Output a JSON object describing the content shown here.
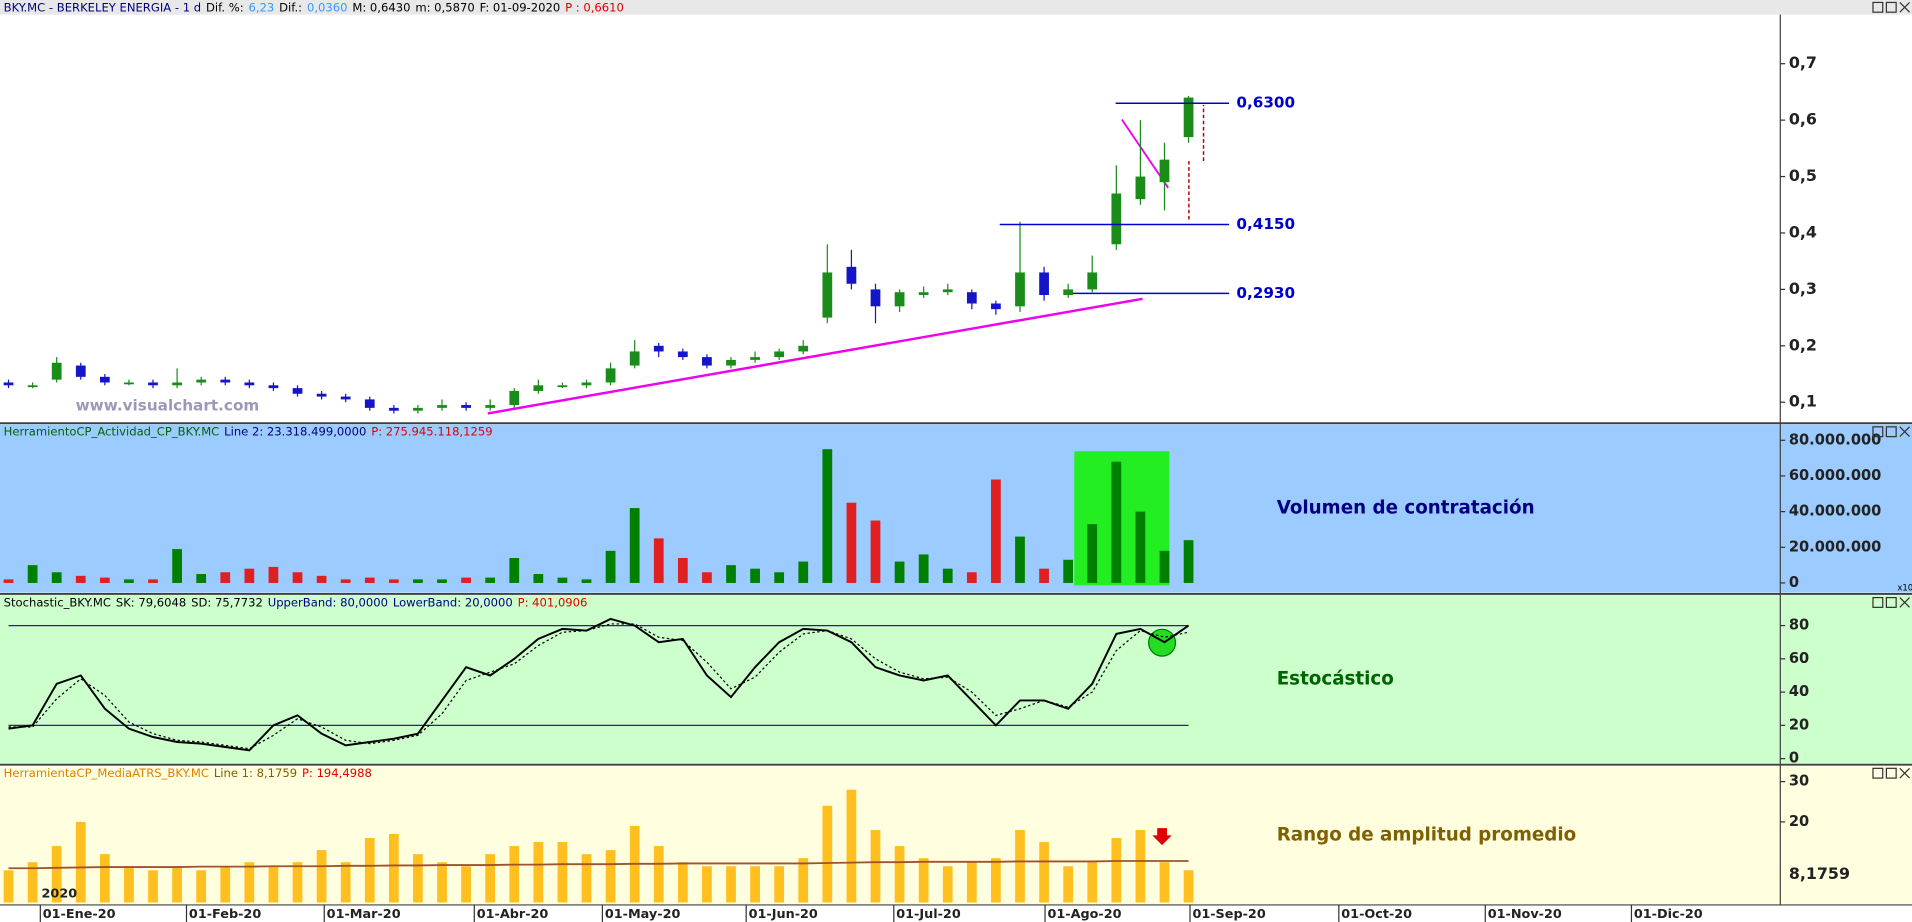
{
  "chart_data": [
    {
      "type": "candlestick",
      "header": [
        {
          "text": "BKY.MC - BERKELEY ENERGIA -  1 d",
          "color": "#000080"
        },
        {
          "text": "Dif. %:",
          "color": "#000000"
        },
        {
          "text": "6,23",
          "color": "#3399ff"
        },
        {
          "text": "Dif.:",
          "color": "#000000"
        },
        {
          "text": "0,0360",
          "color": "#3399ff"
        },
        {
          "text": "M: 0,6430",
          "color": "#000000"
        },
        {
          "text": "m: 0,5870",
          "color": "#000000"
        },
        {
          "text": "F: 01-09-2020",
          "color": "#000000"
        },
        {
          "text": "P : 0,6610",
          "color": "#e00000"
        }
      ],
      "watermark": "www.visualchart.com",
      "open": [
        0.135,
        0.13,
        0.14,
        0.165,
        0.145,
        0.135,
        0.135,
        0.13,
        0.135,
        0.14,
        0.135,
        0.13,
        0.125,
        0.115,
        0.11,
        0.105,
        0.09,
        0.085,
        0.09,
        0.095,
        0.09,
        0.095,
        0.12,
        0.13,
        0.13,
        0.135,
        0.165,
        0.2,
        0.19,
        0.18,
        0.165,
        0.175,
        0.18,
        0.19,
        0.25,
        0.34,
        0.3,
        0.27,
        0.29,
        0.295,
        0.295,
        0.275,
        0.27,
        0.33,
        0.29,
        0.3,
        0.38,
        0.46,
        0.49,
        0.57
      ],
      "high": [
        0.14,
        0.135,
        0.18,
        0.17,
        0.15,
        0.14,
        0.14,
        0.16,
        0.145,
        0.145,
        0.14,
        0.135,
        0.13,
        0.12,
        0.115,
        0.11,
        0.095,
        0.095,
        0.105,
        0.1,
        0.105,
        0.125,
        0.14,
        0.135,
        0.14,
        0.17,
        0.21,
        0.205,
        0.195,
        0.185,
        0.18,
        0.19,
        0.195,
        0.21,
        0.38,
        0.37,
        0.31,
        0.3,
        0.305,
        0.31,
        0.3,
        0.28,
        0.42,
        0.34,
        0.31,
        0.36,
        0.52,
        0.6,
        0.56,
        0.643
      ],
      "low": [
        0.125,
        0.125,
        0.135,
        0.14,
        0.13,
        0.13,
        0.125,
        0.125,
        0.13,
        0.13,
        0.125,
        0.12,
        0.11,
        0.105,
        0.1,
        0.085,
        0.08,
        0.08,
        0.085,
        0.085,
        0.085,
        0.09,
        0.115,
        0.125,
        0.125,
        0.13,
        0.16,
        0.18,
        0.175,
        0.16,
        0.16,
        0.17,
        0.175,
        0.185,
        0.24,
        0.3,
        0.24,
        0.26,
        0.285,
        0.29,
        0.265,
        0.255,
        0.26,
        0.28,
        0.285,
        0.295,
        0.37,
        0.45,
        0.44,
        0.56
      ],
      "close": [
        0.13,
        0.13,
        0.17,
        0.145,
        0.135,
        0.135,
        0.13,
        0.135,
        0.14,
        0.135,
        0.13,
        0.125,
        0.115,
        0.11,
        0.105,
        0.09,
        0.085,
        0.09,
        0.095,
        0.09,
        0.095,
        0.12,
        0.13,
        0.13,
        0.135,
        0.16,
        0.19,
        0.19,
        0.18,
        0.165,
        0.175,
        0.18,
        0.19,
        0.2,
        0.33,
        0.31,
        0.27,
        0.295,
        0.295,
        0.3,
        0.275,
        0.265,
        0.33,
        0.29,
        0.3,
        0.33,
        0.47,
        0.5,
        0.53,
        0.64
      ],
      "up_color": "#1a8c1a",
      "down_color": "#1414c8",
      "xlim": [
        -0.354,
        73.47
      ],
      "ylim": [
        0.065,
        0.787
      ],
      "yticks": [
        {
          "value": 0.1,
          "label": "0,1"
        },
        {
          "value": 0.2,
          "label": "0,2"
        },
        {
          "value": 0.3,
          "label": "0,3"
        },
        {
          "value": 0.4,
          "label": "0,4"
        },
        {
          "value": 0.5,
          "label": "0,5"
        },
        {
          "value": 0.6,
          "label": "0,6"
        },
        {
          "value": 0.7,
          "label": "0,7"
        }
      ],
      "levels": [
        {
          "value": 0.63,
          "label": "0,6300",
          "x": [
            45.97,
            50.68
          ]
        },
        {
          "value": 0.415,
          "label": "0,4150",
          "x": [
            41.16,
            50.68
          ]
        },
        {
          "value": 0.293,
          "label": "0,2930",
          "x": [
            44.2,
            50.68
          ]
        }
      ],
      "level_color": "#0000cc"
    },
    {
      "type": "bar",
      "header": [
        {
          "text": "HerramientoCP_Actividad_CP_BKY.MC",
          "color": "#006400"
        },
        {
          "text": "Line 2: 23.318.499,0000",
          "color": "#000080"
        },
        {
          "text": "P: 275.945.118,1259",
          "color": "#e00000"
        }
      ],
      "label": "Volumen de contratación",
      "values": [
        2000000,
        10000000,
        6000000,
        4000000,
        3000000,
        2000000,
        2000000,
        19000000,
        5000000,
        6000000,
        8000000,
        9000000,
        6000000,
        4000000,
        2000000,
        3000000,
        2000000,
        2000000,
        2000000,
        3000000,
        3000000,
        14000000,
        5000000,
        3000000,
        2000000,
        18000000,
        42000000,
        25000000,
        14000000,
        6000000,
        10000000,
        8000000,
        6000000,
        12000000,
        75000000,
        45000000,
        35000000,
        12000000,
        16000000,
        8000000,
        6000000,
        58000000,
        26000000,
        8000000,
        13000000,
        33000000,
        68000000,
        40000000,
        18000000,
        24000000
      ],
      "up_color": "#008000",
      "down_color": "#e02020",
      "ylim": [
        -5470000,
        88900000
      ],
      "yticks": [
        0,
        {
          "value": 20000000,
          "label": "20.000.000"
        },
        {
          "value": 40000000,
          "label": "40.000.000"
        },
        {
          "value": 60000000,
          "label": "60.000.000"
        },
        {
          "value": 80000000,
          "label": "80.000.000"
        }
      ],
      "multiplier": "x10",
      "background": "#9ccbff"
    },
    {
      "type": "line",
      "header": [
        {
          "text": "Stochastic_BKY.MC",
          "color": "#000000"
        },
        {
          "text": "SK: 79,6048",
          "color": "#000000"
        },
        {
          "text": "SD: 75,7732",
          "color": "#000000"
        },
        {
          "text": "UpperBand: 80,0000",
          "color": "#000080"
        },
        {
          "text": "LowerBand: 20,0000",
          "color": "#000080"
        },
        {
          "text": "P: 401,0906",
          "color": "#e00000"
        }
      ],
      "label": "Estocástico",
      "series": [
        {
          "name": "SK",
          "color": "#000000",
          "values": [
            18,
            20,
            45,
            50,
            30,
            18,
            13,
            10,
            9,
            7,
            5,
            20,
            26,
            15,
            8,
            10,
            12,
            15,
            35,
            55,
            50,
            60,
            72,
            78,
            77,
            84,
            80,
            70,
            72,
            50,
            37,
            55,
            70,
            78,
            77,
            70,
            55,
            50,
            47,
            50,
            35,
            20,
            35,
            35,
            30,
            45,
            75,
            78,
            70,
            80
          ]
        },
        {
          "name": "SD",
          "color": "#000000",
          "dash": true,
          "values": [
            19,
            19,
            36,
            48,
            38,
            22,
            15,
            11,
            10,
            8,
            6,
            14,
            24,
            19,
            11,
            9,
            11,
            14,
            27,
            47,
            52,
            57,
            68,
            76,
            77,
            81,
            81,
            73,
            71,
            58,
            42,
            49,
            64,
            75,
            77,
            72,
            60,
            52,
            48,
            49,
            40,
            26,
            30,
            35,
            31,
            40,
            65,
            77,
            73,
            76
          ]
        }
      ],
      "bands": [
        80,
        20
      ],
      "band_color": "#2020a0",
      "ylim": [
        -2.9,
        98.3
      ],
      "yticks": [
        0,
        20,
        40,
        60,
        80
      ],
      "background": "#ccffcc"
    },
    {
      "type": "bar",
      "header": [
        {
          "text": "HerramientaCP_MediaATRS_BKY.MC",
          "color": "#e08000"
        },
        {
          "text": "Line 1: 8,1759",
          "color": "#806000"
        },
        {
          "text": "P: 194,4988",
          "color": "#e00000"
        }
      ],
      "label": "Rango de amplitud promedio",
      "values": [
        8,
        10,
        14,
        20,
        12,
        9,
        8,
        9,
        8,
        9,
        10,
        9,
        10,
        13,
        10,
        16,
        17,
        12,
        10,
        9,
        12,
        14,
        15,
        15,
        12,
        13,
        19,
        14,
        10,
        9,
        9,
        9,
        9,
        11,
        24,
        28,
        18,
        14,
        11,
        9,
        10,
        11,
        18,
        15,
        9,
        10,
        16,
        18,
        10,
        8
      ],
      "color": "#ffbf1f",
      "mean": [
        8.5,
        8.5,
        8.6,
        8.7,
        8.8,
        8.8,
        8.8,
        8.8,
        8.9,
        8.9,
        8.9,
        9,
        9,
        9,
        9.1,
        9.1,
        9.2,
        9.2,
        9.3,
        9.3,
        9.3,
        9.4,
        9.4,
        9.5,
        9.5,
        9.5,
        9.6,
        9.6,
        9.7,
        9.7,
        9.7,
        9.7,
        9.7,
        9.7,
        9.8,
        9.9,
        10,
        10,
        10.1,
        10.1,
        10.1,
        10.1,
        10.2,
        10.2,
        10.2,
        10.2,
        10.3,
        10.3,
        10.3,
        10.3
      ],
      "mean_color": "#a0522d",
      "last": {
        "value": 8.1759,
        "label": "8,1759"
      },
      "ylim": [
        -0.6,
        33.9
      ],
      "yticks": [
        20,
        30
      ],
      "background": "#ffffe0",
      "year_label": "2020",
      "xticks": [
        {
          "value": 1.32,
          "label": "01-Ene-20"
        },
        {
          "value": 7.39,
          "label": "01-Feb-20"
        },
        {
          "value": 13.11,
          "label": "01-Mar-20"
        },
        {
          "value": 19.34,
          "label": "01-Abr-20"
        },
        {
          "value": 24.66,
          "label": "01-May-20"
        },
        {
          "value": 30.63,
          "label": "01-Jun-20"
        },
        {
          "value": 36.76,
          "label": "01-Jul-20"
        },
        {
          "value": 43.04,
          "label": "01-Ago-20"
        },
        {
          "value": 49.06,
          "label": "01-Sep-20"
        },
        {
          "value": 55.24,
          "label": "01-Oct-20"
        },
        {
          "value": 61.32,
          "label": "01-Nov-20"
        },
        {
          "value": 67.39,
          "label": "01-Dic-20"
        }
      ]
    }
  ]
}
